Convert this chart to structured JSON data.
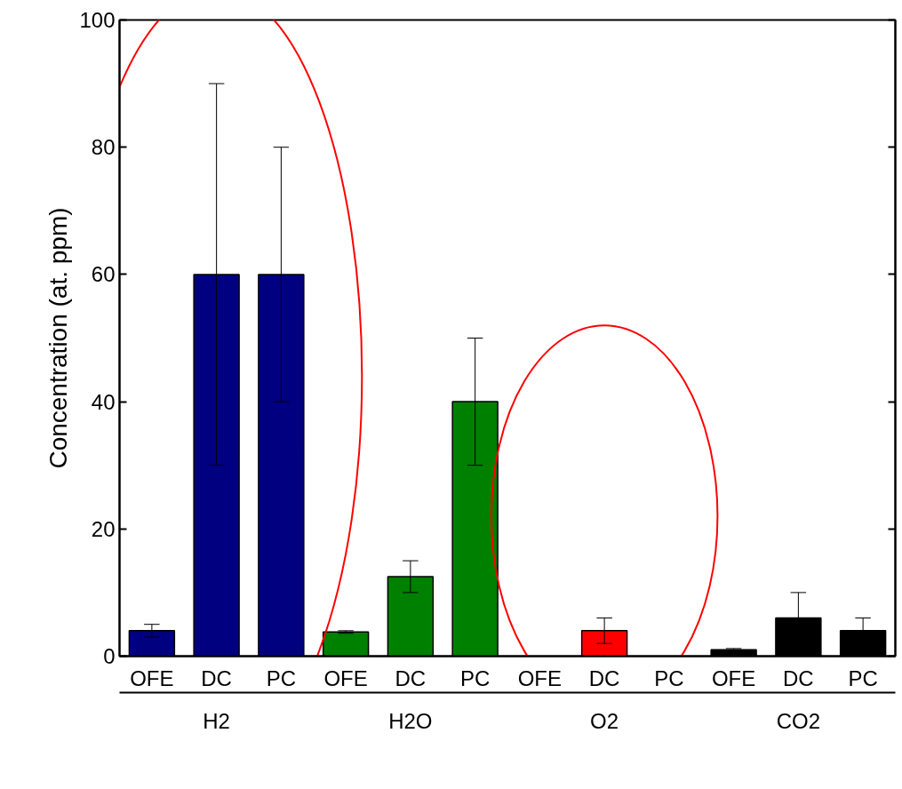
{
  "chart_data": {
    "type": "bar",
    "ylabel": "Concentration (at. ppm)",
    "categories": [
      "OFE",
      "DC",
      "PC",
      "OFE",
      "DC",
      "PC",
      "OFE",
      "DC",
      "PC",
      "OFE",
      "DC",
      "PC"
    ],
    "series": [
      {
        "name": "H2",
        "color": "#000080",
        "values": [
          4,
          60,
          60,
          null,
          null,
          null,
          null,
          null,
          null,
          null,
          null,
          null
        ],
        "errors": [
          1,
          30,
          20,
          null,
          null,
          null,
          null,
          null,
          null,
          null,
          null,
          null
        ]
      },
      {
        "name": "H2O",
        "color": "#008000",
        "values": [
          null,
          null,
          null,
          3.8,
          12.5,
          40,
          null,
          null,
          null,
          null,
          null,
          null
        ],
        "errors": [
          null,
          null,
          null,
          0.2,
          [
            10,
            15
          ],
          10,
          null,
          null,
          null,
          null,
          null,
          null
        ]
      },
      {
        "name": "O2",
        "color": "#ff0000",
        "values": [
          null,
          null,
          null,
          null,
          null,
          null,
          null,
          4,
          null,
          null,
          null,
          null
        ],
        "errors": [
          null,
          null,
          null,
          null,
          null,
          null,
          null,
          2,
          null,
          null,
          null,
          null
        ]
      },
      {
        "name": "CO2",
        "color": "#000000",
        "values": [
          null,
          null,
          null,
          null,
          null,
          null,
          null,
          null,
          null,
          1,
          6,
          4
        ],
        "errors": [
          null,
          null,
          null,
          null,
          null,
          null,
          null,
          null,
          null,
          0.2,
          [
            6,
            10
          ],
          [
            4,
            6
          ]
        ]
      }
    ],
    "ylim": [
      0,
      100
    ],
    "yticks": [
      0,
      20,
      40,
      60,
      80,
      100
    ],
    "grid": false
  }
}
